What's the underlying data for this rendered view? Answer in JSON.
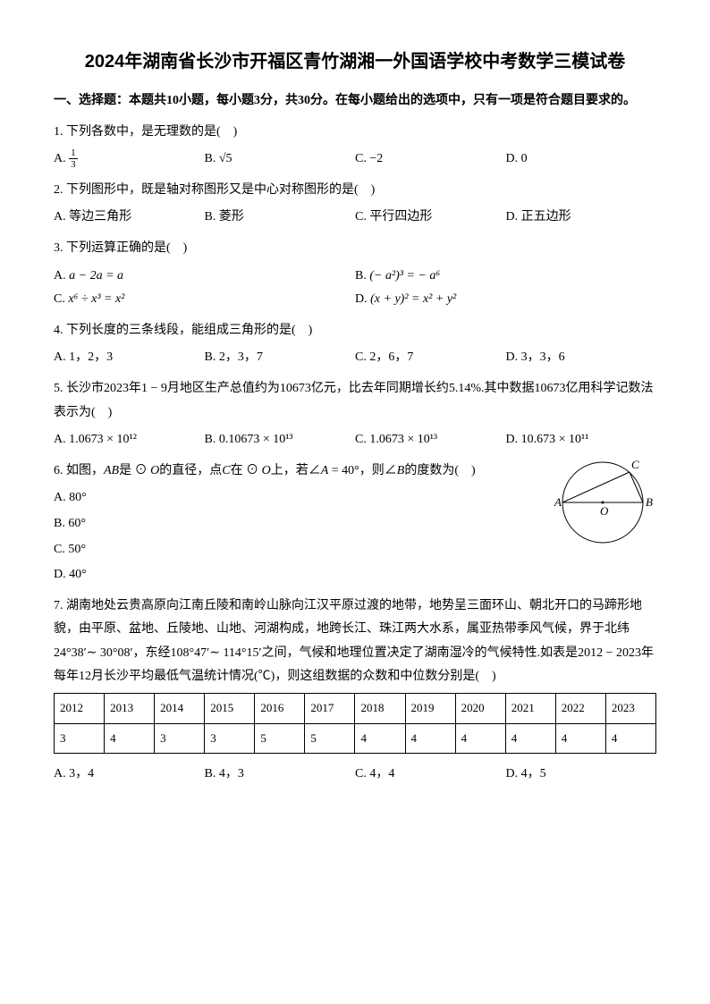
{
  "title": "2024年湖南省长沙市开福区青竹湖湘一外国语学校中考数学三模试卷",
  "section1": "一、选择题：本题共10小题，每小题3分，共30分。在每小题给出的选项中，只有一项是符合题目要求的。",
  "q1": {
    "text": "1. 下列各数中，是无理数的是(　)",
    "optA": "A. ",
    "optA_frac_num": "1",
    "optA_frac_den": "3",
    "optB": "B. √5",
    "optC": "C. −2",
    "optD": "D. 0"
  },
  "q2": {
    "text": "2. 下列图形中，既是轴对称图形又是中心对称图形的是(　)",
    "optA": "A. 等边三角形",
    "optB": "B. 菱形",
    "optC": "C. 平行四边形",
    "optD": "D. 正五边形"
  },
  "q3": {
    "text": "3. 下列运算正确的是(　)",
    "optA_pre": "A. ",
    "optA_math": "a − 2a = a",
    "optB_pre": "B. ",
    "optB_math": "(− a²)³ = − a⁶",
    "optC_pre": "C. ",
    "optC_math": "x⁶ ÷ x³ = x²",
    "optD_pre": "D. ",
    "optD_math": "(x + y)² = x² + y²"
  },
  "q4": {
    "text": "4. 下列长度的三条线段，能组成三角形的是(　)",
    "optA": "A. 1，2，3",
    "optB": "B. 2，3，7",
    "optC": "C. 2，6，7",
    "optD": "D. 3，3，6"
  },
  "q5": {
    "text": "5. 长沙市2023年1 − 9月地区生产总值约为10673亿元，比去年同期增长约5.14%.其中数据10673亿用科学记数法表示为(　)",
    "optA": "A. 1.0673 × 10¹²",
    "optB": "B. 0.10673 × 10¹³",
    "optC": "C. 1.0673 × 10¹³",
    "optD": "D. 10.673 × 10¹¹"
  },
  "q6": {
    "text_pre": "6. 如图，",
    "text_ab": "AB",
    "text_mid1": "是 ⊙ ",
    "text_o1": "O",
    "text_mid2": "的直径，点",
    "text_c": "C",
    "text_mid3": "在 ⊙ ",
    "text_o2": "O",
    "text_mid4": "上，若∠",
    "text_a": "A",
    "text_mid5": " = 40°，则∠",
    "text_b": "B",
    "text_mid6": "的度数为(　)",
    "optA": "A. 80°",
    "optB": "B. 60°",
    "optC": "C. 50°",
    "optD": "D. 40°",
    "figure": {
      "labelA": "A",
      "labelB": "B",
      "labelC": "C",
      "labelO": "O"
    }
  },
  "q7": {
    "text": "7. 湖南地处云贵高原向江南丘陵和南岭山脉向江汉平原过渡的地带，地势呈三面环山、朝北开口的马蹄形地貌，由平原、盆地、丘陵地、山地、河湖构成，地跨长江、珠江两大水系，属亚热带季风气候，界于北纬24°38′∼ 30°08′，东经108°47′∼ 114°15′之间，气候和地理位置决定了湖南湿冷的气候特性.如表是2012 − 2023年每年12月长沙平均最低气温统计情况(℃)，则这组数据的众数和中位数分别是(　)",
    "table": {
      "years": [
        "2012",
        "2013",
        "2014",
        "2015",
        "2016",
        "2017",
        "2018",
        "2019",
        "2020",
        "2021",
        "2022",
        "2023"
      ],
      "values": [
        "3",
        "4",
        "3",
        "3",
        "5",
        "5",
        "4",
        "4",
        "4",
        "4",
        "4",
        "4"
      ]
    },
    "optA": "A. 3，4",
    "optB": "B. 4，3",
    "optC": "C. 4，4",
    "optD": "D. 4，5"
  }
}
